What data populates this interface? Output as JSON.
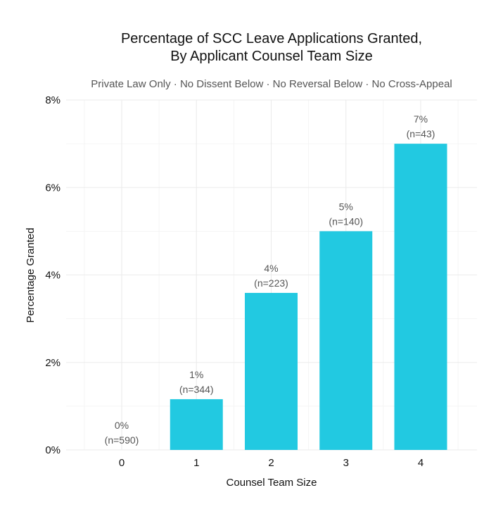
{
  "chart_data": {
    "type": "bar",
    "title_lines": [
      "Percentage of SCC Leave Applications Granted,",
      "By Applicant Counsel Team Size"
    ],
    "subtitle": "Private Law Only · No Dissent Below · No Reversal Below · No Cross-Appeal",
    "xlabel": "Counsel Team Size",
    "ylabel": "Percentage Granted",
    "categories": [
      "0",
      "1",
      "2",
      "3",
      "4"
    ],
    "values": [
      0.0,
      1.16,
      3.59,
      5.0,
      7.0
    ],
    "value_labels": [
      "0%",
      "1%",
      "4%",
      "5%",
      "7%"
    ],
    "n_labels": [
      "(n=590)",
      "(n=344)",
      "(n=223)",
      "(n=140)",
      "(n=43)"
    ],
    "ylim": [
      0,
      8
    ],
    "yticks": [
      0,
      2,
      4,
      6,
      8
    ],
    "ytick_labels": [
      "0%",
      "2%",
      "4%",
      "6%",
      "8%"
    ],
    "grid": true,
    "legend": "none",
    "bar_color": "#22c9e1"
  }
}
